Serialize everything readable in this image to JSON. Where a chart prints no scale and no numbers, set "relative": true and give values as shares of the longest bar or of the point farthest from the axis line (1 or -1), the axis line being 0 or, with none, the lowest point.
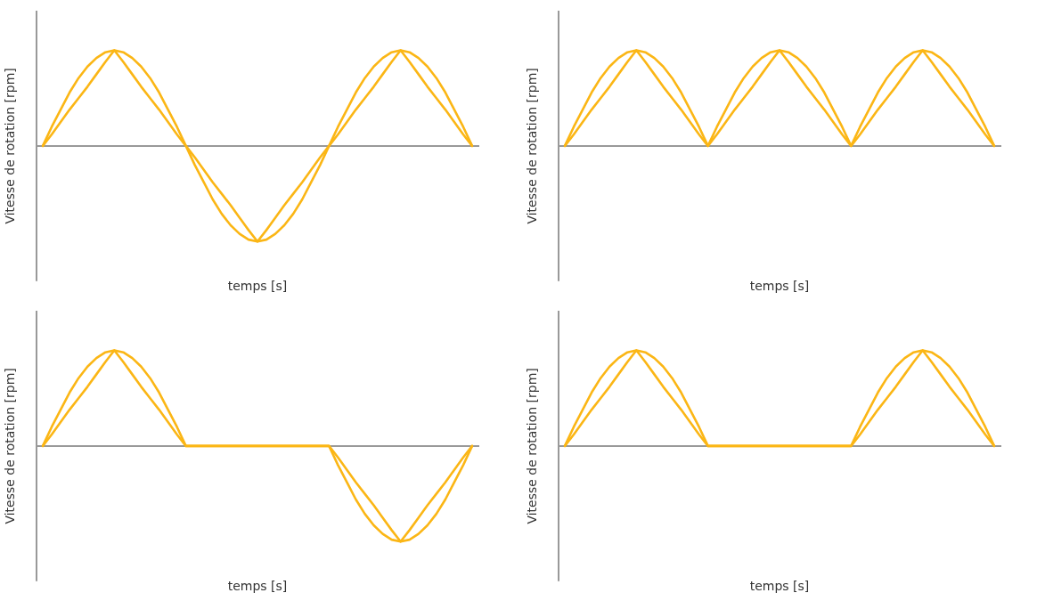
{
  "chart_data": [
    {
      "type": "line",
      "relative": true,
      "xlabel": "temps [s]",
      "ylabel": "Vitesse de rotation [rpm]",
      "legend": false,
      "grid": false,
      "marker": "none",
      "line_style": "solid",
      "categories": [
        null,
        null,
        null,
        null,
        null,
        null,
        null,
        null,
        null,
        null,
        null,
        null,
        null,
        null,
        null,
        null,
        null,
        null,
        null,
        null,
        null,
        null,
        null,
        null,
        null,
        null,
        null,
        null,
        null,
        null,
        null,
        null,
        null,
        null,
        null,
        null,
        null,
        null,
        null,
        null,
        null,
        null,
        null,
        null,
        null,
        null,
        null,
        null,
        null
      ],
      "series": [
        {
          "color": "#fbb615",
          "values": [
            0,
            0.2,
            0.38,
            0.56,
            0.71,
            0.83,
            0.92,
            0.98,
            1,
            0.98,
            0.92,
            0.83,
            0.71,
            0.56,
            0.38,
            0.2,
            0,
            -0.2,
            -0.38,
            -0.56,
            -0.71,
            -0.83,
            -0.92,
            -0.98,
            -1,
            -0.98,
            -0.92,
            -0.83,
            -0.71,
            -0.56,
            -0.38,
            -0.2,
            0,
            0.2,
            0.38,
            0.56,
            0.71,
            0.83,
            0.92,
            0.98,
            1,
            0.98,
            0.92,
            0.83,
            0.71,
            0.56,
            0.38,
            0.2,
            0
          ]
        },
        {
          "color": "#fbb615",
          "values": [
            0,
            0.12,
            0.25,
            0.38,
            0.5,
            0.62,
            0.75,
            0.88,
            1,
            0.88,
            0.75,
            0.62,
            0.5,
            0.38,
            0.25,
            0.12,
            0,
            -0.12,
            -0.25,
            -0.38,
            -0.5,
            -0.62,
            -0.75,
            -0.88,
            -1,
            -0.88,
            -0.75,
            -0.62,
            -0.5,
            -0.38,
            -0.25,
            -0.12,
            0,
            0.12,
            0.25,
            0.38,
            0.5,
            0.62,
            0.75,
            0.88,
            1,
            0.88,
            0.75,
            0.62,
            0.5,
            0.38,
            0.25,
            0.12,
            0
          ]
        }
      ]
    },
    {
      "type": "line",
      "relative": true,
      "xlabel": "temps [s]",
      "ylabel": "Vitesse de rotation [rpm]",
      "legend": false,
      "grid": false,
      "marker": "none",
      "line_style": "solid",
      "categories": [
        null,
        null,
        null,
        null,
        null,
        null,
        null,
        null,
        null,
        null,
        null,
        null,
        null,
        null,
        null,
        null,
        null,
        null,
        null,
        null,
        null,
        null,
        null,
        null,
        null,
        null,
        null,
        null,
        null,
        null,
        null,
        null,
        null,
        null,
        null,
        null,
        null,
        null,
        null,
        null,
        null,
        null,
        null,
        null,
        null,
        null,
        null,
        null,
        null
      ],
      "series": [
        {
          "color": "#fbb615",
          "values": [
            0,
            0.2,
            0.38,
            0.56,
            0.71,
            0.83,
            0.92,
            0.98,
            1,
            0.98,
            0.92,
            0.83,
            0.71,
            0.56,
            0.38,
            0.2,
            0,
            0.2,
            0.38,
            0.56,
            0.71,
            0.83,
            0.92,
            0.98,
            1,
            0.98,
            0.92,
            0.83,
            0.71,
            0.56,
            0.38,
            0.2,
            0,
            0.2,
            0.38,
            0.56,
            0.71,
            0.83,
            0.92,
            0.98,
            1,
            0.98,
            0.92,
            0.83,
            0.71,
            0.56,
            0.38,
            0.2,
            0
          ]
        },
        {
          "color": "#fbb615",
          "values": [
            0,
            0.12,
            0.25,
            0.38,
            0.5,
            0.62,
            0.75,
            0.88,
            1,
            0.88,
            0.75,
            0.62,
            0.5,
            0.38,
            0.25,
            0.12,
            0,
            0.12,
            0.25,
            0.38,
            0.5,
            0.62,
            0.75,
            0.88,
            1,
            0.88,
            0.75,
            0.62,
            0.5,
            0.38,
            0.25,
            0.12,
            0,
            0.12,
            0.25,
            0.38,
            0.5,
            0.62,
            0.75,
            0.88,
            1,
            0.88,
            0.75,
            0.62,
            0.5,
            0.38,
            0.25,
            0.12,
            0
          ]
        }
      ]
    },
    {
      "type": "line",
      "relative": true,
      "xlabel": "temps [s]",
      "ylabel": "Vitesse de rotation [rpm]",
      "legend": false,
      "grid": false,
      "marker": "none",
      "line_style": "solid",
      "categories": [
        null,
        null,
        null,
        null,
        null,
        null,
        null,
        null,
        null,
        null,
        null,
        null,
        null,
        null,
        null,
        null,
        null,
        null,
        null,
        null,
        null,
        null,
        null,
        null,
        null,
        null,
        null,
        null,
        null,
        null,
        null,
        null,
        null,
        null,
        null,
        null,
        null,
        null,
        null,
        null,
        null,
        null,
        null,
        null,
        null,
        null,
        null,
        null,
        null
      ],
      "series": [
        {
          "color": "#fbb615",
          "values": [
            0,
            0.2,
            0.38,
            0.56,
            0.71,
            0.83,
            0.92,
            0.98,
            1,
            0.98,
            0.92,
            0.83,
            0.71,
            0.56,
            0.38,
            0.2,
            0,
            0,
            0,
            0,
            0,
            0,
            0,
            0,
            0,
            0,
            0,
            0,
            0,
            0,
            0,
            0,
            0,
            -0.2,
            -0.38,
            -0.56,
            -0.71,
            -0.83,
            -0.92,
            -0.98,
            -1,
            -0.98,
            -0.92,
            -0.83,
            -0.71,
            -0.56,
            -0.38,
            -0.2,
            0
          ]
        },
        {
          "color": "#fbb615",
          "values": [
            0,
            0.12,
            0.25,
            0.38,
            0.5,
            0.62,
            0.75,
            0.88,
            1,
            0.88,
            0.75,
            0.62,
            0.5,
            0.38,
            0.25,
            0.12,
            0,
            0,
            0,
            0,
            0,
            0,
            0,
            0,
            0,
            0,
            0,
            0,
            0,
            0,
            0,
            0,
            0,
            -0.12,
            -0.25,
            -0.38,
            -0.5,
            -0.62,
            -0.75,
            -0.88,
            -1,
            -0.88,
            -0.75,
            -0.62,
            -0.5,
            -0.38,
            -0.25,
            -0.12,
            0
          ]
        }
      ]
    },
    {
      "type": "line",
      "relative": true,
      "xlabel": "temps [s]",
      "ylabel": "Vitesse de rotation [rpm]",
      "legend": false,
      "grid": false,
      "marker": "none",
      "line_style": "solid",
      "categories": [
        null,
        null,
        null,
        null,
        null,
        null,
        null,
        null,
        null,
        null,
        null,
        null,
        null,
        null,
        null,
        null,
        null,
        null,
        null,
        null,
        null,
        null,
        null,
        null,
        null,
        null,
        null,
        null,
        null,
        null,
        null,
        null,
        null,
        null,
        null,
        null,
        null,
        null,
        null,
        null,
        null,
        null,
        null,
        null,
        null,
        null,
        null,
        null,
        null
      ],
      "series": [
        {
          "color": "#fbb615",
          "values": [
            0,
            0.2,
            0.38,
            0.56,
            0.71,
            0.83,
            0.92,
            0.98,
            1,
            0.98,
            0.92,
            0.83,
            0.71,
            0.56,
            0.38,
            0.2,
            0,
            0,
            0,
            0,
            0,
            0,
            0,
            0,
            0,
            0,
            0,
            0,
            0,
            0,
            0,
            0,
            0,
            0.2,
            0.38,
            0.56,
            0.71,
            0.83,
            0.92,
            0.98,
            1,
            0.98,
            0.92,
            0.83,
            0.71,
            0.56,
            0.38,
            0.2,
            0
          ]
        },
        {
          "color": "#fbb615",
          "values": [
            0,
            0.12,
            0.25,
            0.38,
            0.5,
            0.62,
            0.75,
            0.88,
            1,
            0.88,
            0.75,
            0.62,
            0.5,
            0.38,
            0.25,
            0.12,
            0,
            0,
            0,
            0,
            0,
            0,
            0,
            0,
            0,
            0,
            0,
            0,
            0,
            0,
            0,
            0,
            0,
            0.12,
            0.25,
            0.38,
            0.5,
            0.62,
            0.75,
            0.88,
            1,
            0.88,
            0.75,
            0.62,
            0.5,
            0.38,
            0.25,
            0.12,
            0
          ]
        }
      ]
    }
  ]
}
